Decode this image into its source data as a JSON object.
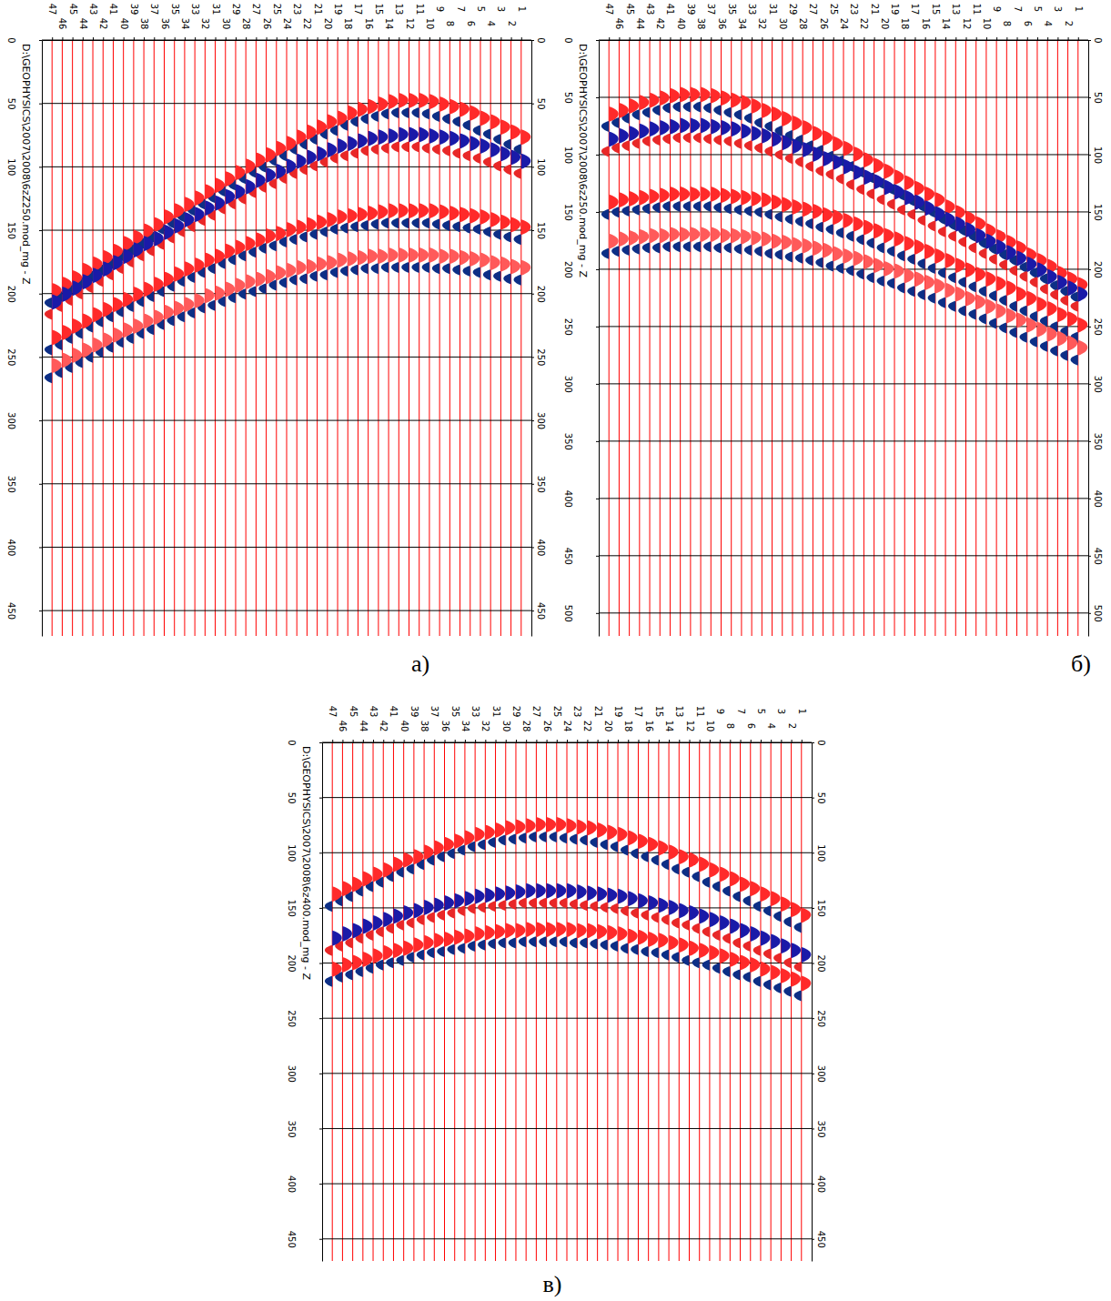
{
  "chart_data": [
    {
      "type": "seismogram",
      "title": "D:\\GEOPHYSICS\\2007\\2008\\6zZ250.mod_mg - Z",
      "label": "а)",
      "x": [
        1,
        2,
        3,
        4,
        5,
        6,
        7,
        8,
        9,
        10,
        11,
        12,
        13,
        14,
        15,
        16,
        17,
        18,
        19,
        20,
        21,
        22,
        23,
        24,
        25,
        26,
        27,
        28,
        29,
        30,
        31,
        32,
        33,
        34,
        35,
        36,
        37,
        38,
        39,
        40,
        41,
        42,
        43,
        44,
        45,
        46,
        47
      ],
      "xlim": [
        48,
        0
      ],
      "xticks": [
        1,
        2,
        3,
        4,
        5,
        6,
        7,
        8,
        9,
        10,
        11,
        12,
        13,
        14,
        15,
        16,
        17,
        18,
        19,
        20,
        21,
        22,
        23,
        24,
        25,
        26,
        27,
        28,
        29,
        30,
        31,
        32,
        33,
        34,
        35,
        36,
        37,
        38,
        39,
        40,
        41,
        42,
        43,
        44,
        45,
        46,
        47
      ],
      "ylim": [
        0,
        470
      ],
      "yticks": [
        0,
        50,
        100,
        150,
        200,
        250,
        300,
        350,
        400,
        450
      ],
      "grid": true,
      "series": [
        {
          "color": "#ff2a2a",
          "values": [
            77,
            73,
            69,
            65,
            62,
            58,
            55,
            53,
            51,
            49,
            48,
            48,
            48,
            49,
            51,
            53,
            55,
            58,
            62,
            65,
            69,
            73,
            77,
            82,
            86,
            91,
            95,
            100,
            105,
            110,
            115,
            120,
            125,
            130,
            135,
            140,
            146,
            151,
            156,
            161,
            167,
            172,
            177,
            182,
            188,
            193,
            198
          ]
        },
        {
          "color": "#1a1aa8",
          "values": [
            96,
            93,
            90,
            87,
            84,
            82,
            80,
            78,
            77,
            76,
            75,
            75,
            75,
            76,
            77,
            78,
            80,
            82,
            84,
            87,
            90,
            93,
            96,
            100,
            104,
            107,
            111,
            116,
            120,
            124,
            129,
            133,
            138,
            142,
            147,
            152,
            157,
            161,
            166,
            171,
            176,
            181,
            186,
            191,
            196,
            201,
            207
          ]
        },
        {
          "color": "#ff2a2a",
          "values": [
            148,
            146,
            144,
            142,
            140,
            139,
            138,
            137,
            136,
            135,
            135,
            135,
            135,
            135,
            136,
            137,
            138,
            139,
            140,
            142,
            144,
            146,
            148,
            150,
            153,
            155,
            158,
            161,
            164,
            167,
            171,
            174,
            178,
            181,
            185,
            189,
            193,
            197,
            201,
            205,
            209,
            213,
            217,
            222,
            226,
            231,
            235
          ]
        },
        {
          "color": "#ff5a5a",
          "values": [
            180,
            179,
            177,
            176,
            174,
            173,
            172,
            171,
            171,
            170,
            170,
            170,
            170,
            170,
            171,
            171,
            172,
            173,
            174,
            176,
            177,
            179,
            180,
            182,
            184,
            187,
            189,
            191,
            194,
            197,
            200,
            202,
            206,
            209,
            212,
            215,
            219,
            222,
            226,
            229,
            233,
            237,
            241,
            245,
            249,
            253,
            257
          ]
        }
      ]
    },
    {
      "type": "seismogram",
      "title": "D:\\GEOPHYSICS\\2007\\2008\\6z250.mod_mg - Z",
      "label": "б)",
      "x": [
        1,
        2,
        3,
        4,
        5,
        6,
        7,
        8,
        9,
        10,
        11,
        12,
        13,
        14,
        15,
        16,
        17,
        18,
        19,
        20,
        21,
        22,
        23,
        24,
        25,
        26,
        27,
        28,
        29,
        30,
        31,
        32,
        33,
        34,
        35,
        36,
        37,
        38,
        39,
        40,
        41,
        42,
        43,
        44,
        45,
        46,
        47
      ],
      "xlim": [
        48,
        0
      ],
      "xticks": [
        1,
        2,
        3,
        4,
        5,
        6,
        7,
        8,
        9,
        10,
        11,
        12,
        13,
        14,
        15,
        16,
        17,
        18,
        19,
        20,
        21,
        22,
        23,
        24,
        25,
        26,
        27,
        28,
        29,
        30,
        31,
        32,
        33,
        34,
        35,
        36,
        37,
        38,
        39,
        40,
        41,
        42,
        43,
        44,
        45,
        46,
        47
      ],
      "ylim": [
        0,
        520
      ],
      "yticks": [
        0,
        50,
        100,
        150,
        200,
        250,
        300,
        350,
        400,
        450,
        500
      ],
      "grid": true,
      "series": [
        {
          "color": "#ff2a2a",
          "values": [
            214,
            209,
            204,
            198,
            193,
            188,
            182,
            177,
            172,
            167,
            161,
            156,
            151,
            146,
            140,
            135,
            130,
            125,
            120,
            115,
            110,
            105,
            100,
            95,
            91,
            86,
            82,
            77,
            73,
            69,
            65,
            62,
            58,
            55,
            53,
            51,
            49,
            48,
            48,
            48,
            49,
            51,
            53,
            55,
            58,
            62,
            65
          ]
        },
        {
          "color": "#1a1aa8",
          "values": [
            222,
            217,
            212,
            207,
            201,
            196,
            191,
            186,
            181,
            176,
            171,
            166,
            161,
            157,
            152,
            147,
            142,
            138,
            133,
            129,
            124,
            120,
            116,
            111,
            107,
            104,
            100,
            96,
            93,
            90,
            87,
            84,
            82,
            80,
            78,
            77,
            76,
            75,
            75,
            75,
            76,
            77,
            78,
            80,
            82,
            84,
            87
          ]
        },
        {
          "color": "#ff2a2a",
          "values": [
            249,
            244,
            240,
            235,
            231,
            226,
            222,
            217,
            213,
            209,
            205,
            201,
            197,
            193,
            189,
            185,
            181,
            178,
            174,
            171,
            167,
            164,
            161,
            158,
            155,
            153,
            150,
            148,
            146,
            144,
            142,
            140,
            139,
            138,
            137,
            136,
            135,
            135,
            135,
            135,
            135,
            136,
            137,
            138,
            139,
            140,
            142
          ]
        },
        {
          "color": "#ff5a5a",
          "values": [
            269,
            265,
            261,
            257,
            253,
            249,
            245,
            241,
            237,
            233,
            229,
            226,
            222,
            219,
            215,
            212,
            209,
            206,
            202,
            200,
            197,
            194,
            191,
            189,
            187,
            184,
            182,
            180,
            179,
            177,
            176,
            174,
            173,
            172,
            171,
            171,
            170,
            170,
            170,
            170,
            170,
            171,
            171,
            172,
            173,
            174,
            176
          ]
        }
      ]
    },
    {
      "type": "seismogram",
      "title": "D:\\GEOPHYSICS\\2007\\2008\\6z400.mod_mg - Z",
      "label": "в)",
      "x": [
        1,
        2,
        3,
        4,
        5,
        6,
        7,
        8,
        9,
        10,
        11,
        12,
        13,
        14,
        15,
        16,
        17,
        18,
        19,
        20,
        21,
        22,
        23,
        24,
        25,
        26,
        27,
        28,
        29,
        30,
        31,
        32,
        33,
        34,
        35,
        36,
        37,
        38,
        39,
        40,
        41,
        42,
        43,
        44,
        45,
        46,
        47
      ],
      "xlim": [
        48,
        0
      ],
      "xticks": [
        1,
        2,
        3,
        4,
        5,
        6,
        7,
        8,
        9,
        10,
        11,
        12,
        13,
        14,
        15,
        16,
        17,
        18,
        19,
        20,
        21,
        22,
        23,
        24,
        25,
        26,
        27,
        28,
        29,
        30,
        31,
        32,
        33,
        34,
        35,
        36,
        37,
        38,
        39,
        40,
        41,
        42,
        43,
        44,
        45,
        46,
        47
      ],
      "ylim": [
        0,
        470
      ],
      "yticks": [
        0,
        50,
        100,
        150,
        200,
        250,
        300,
        350,
        400,
        450
      ],
      "grid": true,
      "series": [
        {
          "color": "#ff2a2a",
          "values": [
            157,
            152,
            147,
            142,
            138,
            133,
            129,
            124,
            120,
            116,
            111,
            107,
            104,
            100,
            96,
            93,
            90,
            87,
            84,
            82,
            80,
            78,
            77,
            76,
            75,
            75,
            75,
            76,
            77,
            78,
            80,
            82,
            84,
            87,
            90,
            93,
            96,
            100,
            104,
            107,
            111,
            116,
            120,
            124,
            129,
            133,
            138
          ]
        },
        {
          "color": "#1a1aa8",
          "values": [
            193,
            189,
            185,
            181,
            178,
            174,
            171,
            167,
            164,
            161,
            158,
            155,
            153,
            150,
            148,
            146,
            144,
            142,
            140,
            139,
            138,
            137,
            136,
            135,
            135,
            135,
            135,
            135,
            136,
            137,
            138,
            139,
            140,
            142,
            144,
            146,
            148,
            150,
            153,
            155,
            158,
            161,
            164,
            167,
            171,
            174,
            178
          ]
        },
        {
          "color": "#ff2a2a",
          "values": [
            219,
            215,
            212,
            209,
            206,
            202,
            200,
            197,
            194,
            191,
            189,
            187,
            184,
            182,
            180,
            179,
            177,
            176,
            174,
            173,
            172,
            171,
            171,
            170,
            170,
            170,
            170,
            170,
            171,
            171,
            172,
            173,
            174,
            176,
            177,
            179,
            180,
            182,
            184,
            187,
            189,
            191,
            194,
            197,
            200,
            202,
            206
          ]
        }
      ]
    }
  ]
}
